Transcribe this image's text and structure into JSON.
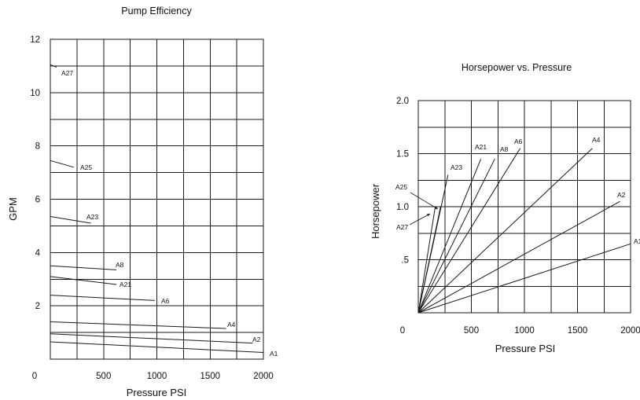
{
  "chart_data": [
    {
      "type": "line",
      "title": "Pump Efficiency",
      "xlabel": "Pressure PSI",
      "ylabel": "GPM",
      "xlim": [
        0,
        2000
      ],
      "ylim": [
        0,
        12
      ],
      "x_ticks": [
        "0",
        "500",
        "1000",
        "1500",
        "2000"
      ],
      "y_ticks": [
        "2",
        "4",
        "6",
        "8",
        "10",
        "12"
      ],
      "grid": true,
      "series": [
        {
          "name": "A27",
          "x": [
            0,
            60
          ],
          "y": [
            11.05,
            10.95
          ]
        },
        {
          "name": "A25",
          "x": [
            0,
            220
          ],
          "y": [
            7.45,
            7.2
          ]
        },
        {
          "name": "A23",
          "x": [
            0,
            380
          ],
          "y": [
            5.35,
            5.1
          ]
        },
        {
          "name": "A8",
          "x": [
            0,
            620
          ],
          "y": [
            3.5,
            3.35
          ]
        },
        {
          "name": "A21",
          "x": [
            0,
            620
          ],
          "y": [
            3.1,
            2.8
          ]
        },
        {
          "name": "A6",
          "x": [
            0,
            980
          ],
          "y": [
            2.4,
            2.2
          ]
        },
        {
          "name": "A4",
          "x": [
            0,
            1650
          ],
          "y": [
            1.4,
            1.15
          ]
        },
        {
          "name": "A2",
          "x": [
            0,
            1900
          ],
          "y": [
            0.95,
            0.6
          ]
        },
        {
          "name": "A1",
          "x": [
            0,
            2000
          ],
          "y": [
            0.65,
            0.25
          ]
        }
      ]
    },
    {
      "type": "line",
      "title": "Horsepower vs. Pressure",
      "xlabel": "Pressure PSI",
      "ylabel": "Horsepower",
      "xlim": [
        0,
        2000
      ],
      "ylim": [
        0,
        2.0
      ],
      "x_ticks": [
        "0",
        "500",
        "1000",
        "1500",
        "2000"
      ],
      "y_ticks": [
        ".5",
        "1.0",
        "1.5",
        "2.0"
      ],
      "grid": true,
      "series": [
        {
          "name": "A27",
          "x": [
            0,
            160
          ],
          "y": [
            0,
            1.0
          ]
        },
        {
          "name": "A25",
          "x": [
            0,
            210
          ],
          "y": [
            0,
            1.0
          ]
        },
        {
          "name": "A23",
          "x": [
            0,
            280
          ],
          "y": [
            0,
            1.3
          ]
        },
        {
          "name": "A21",
          "x": [
            0,
            590
          ],
          "y": [
            0,
            1.45
          ]
        },
        {
          "name": "A8",
          "x": [
            0,
            720
          ],
          "y": [
            0,
            1.45
          ]
        },
        {
          "name": "A6",
          "x": [
            0,
            960
          ],
          "y": [
            0,
            1.55
          ]
        },
        {
          "name": "A4",
          "x": [
            0,
            1640
          ],
          "y": [
            0,
            1.55
          ]
        },
        {
          "name": "A2",
          "x": [
            0,
            1900
          ],
          "y": [
            0,
            1.05
          ]
        },
        {
          "name": "A1",
          "x": [
            0,
            2000
          ],
          "y": [
            0,
            0.65
          ]
        }
      ]
    }
  ]
}
